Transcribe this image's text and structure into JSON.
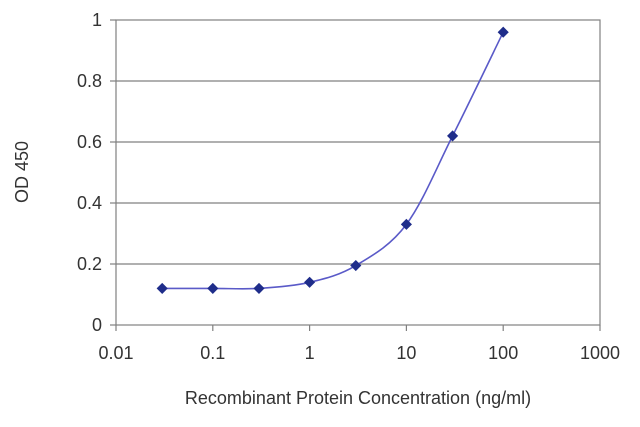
{
  "chart_data": {
    "type": "line",
    "title": "",
    "xlabel": "Recombinant Protein Concentration (ng/ml)",
    "ylabel": "OD 450",
    "x_scale": "log",
    "xlim": [
      0.01,
      1000
    ],
    "ylim": [
      0,
      1
    ],
    "x_ticks": [
      "0.01",
      "0.1",
      "1",
      "10",
      "100",
      "1000"
    ],
    "x_tick_values": [
      0.01,
      0.1,
      1,
      10,
      100,
      1000
    ],
    "y_ticks": [
      "0",
      "0.2",
      "0.4",
      "0.6",
      "0.8",
      "1"
    ],
    "y_tick_values": [
      0,
      0.2,
      0.4,
      0.6,
      0.8,
      1
    ],
    "grid": "horizontal",
    "legend": "none",
    "series": [
      {
        "x": [
          0.03,
          0.1,
          0.3,
          1,
          3,
          10,
          30,
          100
        ],
        "y": [
          0.12,
          0.12,
          0.12,
          0.14,
          0.195,
          0.33,
          0.62,
          0.96
        ],
        "color": "#1f2d8a",
        "line_color": "#5a5ac8",
        "marker": "diamond"
      }
    ]
  }
}
